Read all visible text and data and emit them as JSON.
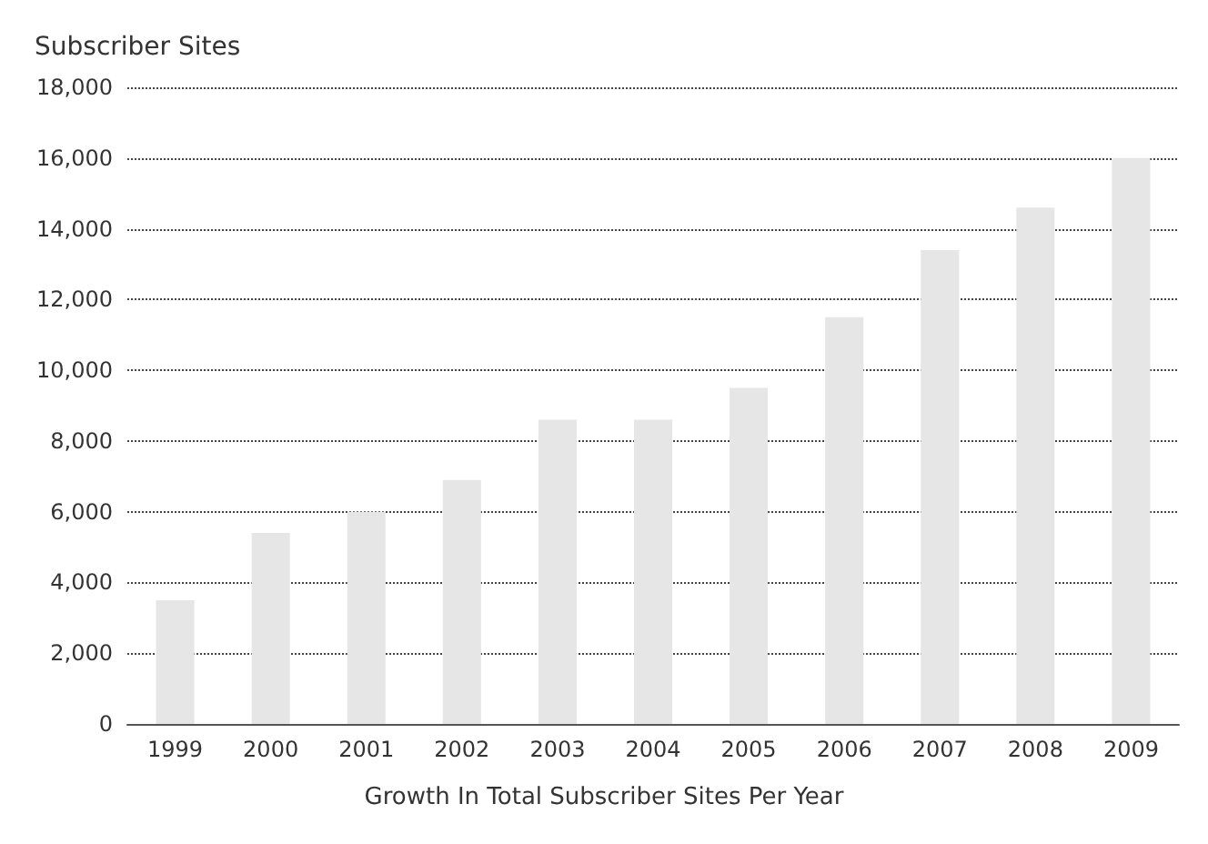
{
  "chart_data": {
    "type": "bar",
    "ylabel": "Subscriber Sites",
    "xlabel": "Growth In Total Subscriber Sites Per Year",
    "categories": [
      "1999",
      "2000",
      "2001",
      "2002",
      "2003",
      "2004",
      "2005",
      "2006",
      "2007",
      "2008",
      "2009"
    ],
    "values": [
      3500,
      5400,
      6000,
      6900,
      8600,
      8600,
      9500,
      11500,
      13400,
      14600,
      16000
    ],
    "color": "#e6e6e6",
    "ylim": [
      0,
      18000
    ],
    "yticks": [
      0,
      {
        "value": 2000,
        "label": "2,000"
      },
      {
        "value": 4000,
        "label": "4,000"
      },
      {
        "value": 6000,
        "label": "6,000"
      },
      {
        "value": 8000,
        "label": "8,000"
      },
      {
        "value": 10000,
        "label": "10,000"
      },
      {
        "value": 12000,
        "label": "12,000"
      },
      {
        "value": 14000,
        "label": "14,000"
      },
      {
        "value": 16000,
        "label": "16,000"
      },
      {
        "value": 18000,
        "label": "18,000"
      }
    ],
    "grid": "y"
  }
}
